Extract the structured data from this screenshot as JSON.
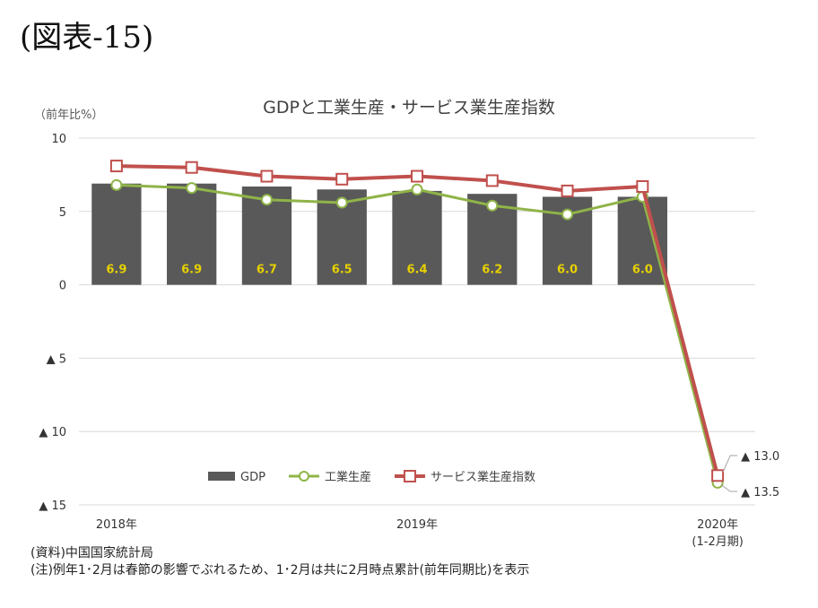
{
  "figure_label": "(図表-15)",
  "chart_data": {
    "type": "bar+line",
    "title": "GDPと工業生産・サービス業生産指数",
    "ylabel": "（前年比%）",
    "ylim": [
      -15,
      10
    ],
    "y_ticks": [
      10,
      5,
      0,
      -5,
      -10,
      -15
    ],
    "y_tick_labels": [
      "10",
      "5",
      "0",
      "▲ 5",
      "▲ 10",
      "▲ 15"
    ],
    "x_tick_labels": [
      {
        "text": "2018年",
        "index": 0
      },
      {
        "text": "2019年",
        "index": 4
      },
      {
        "text": "2020年",
        "text2": "(1-2月期)",
        "index": 8
      }
    ],
    "grid": true,
    "legend_position": "bottom-inside",
    "series": [
      {
        "name": "GDP",
        "kind": "bar",
        "color": "#595959",
        "values": [
          6.9,
          6.9,
          6.7,
          6.5,
          6.4,
          6.2,
          6.0,
          6.0,
          null
        ],
        "labels": [
          "6.9",
          "6.9",
          "6.7",
          "6.5",
          "6.4",
          "6.2",
          "6.0",
          "6.0",
          ""
        ],
        "label_color": "#e6d000"
      },
      {
        "name": "工業生産",
        "kind": "line",
        "color": "#8fb448",
        "marker": "circle",
        "values": [
          6.8,
          6.6,
          5.8,
          5.6,
          6.5,
          5.4,
          4.8,
          6.0,
          -13.5
        ]
      },
      {
        "name": "サービス業生産指数",
        "kind": "line",
        "color": "#c0504d",
        "marker": "square",
        "values": [
          8.1,
          8.0,
          7.4,
          7.2,
          7.4,
          7.1,
          6.4,
          6.7,
          -13.0
        ]
      }
    ],
    "annotations": [
      {
        "text": "▲ 13.0",
        "series": "サービス業生産指数"
      },
      {
        "text": "▲ 13.5",
        "series": "工業生産"
      }
    ]
  },
  "notes": {
    "source": "(資料)中国国家統計局",
    "note": "(注)例年1･2月は春節の影響でぶれるため、1･2月は共に2月時点累計(前年同期比)を表示"
  }
}
